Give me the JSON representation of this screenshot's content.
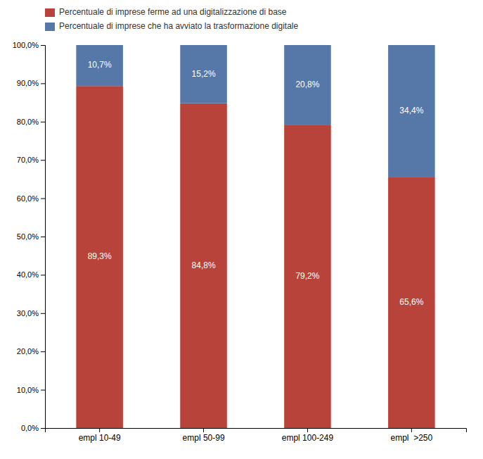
{
  "chart_data": {
    "type": "bar",
    "stacked": true,
    "data_labels": true,
    "grid": false,
    "legend": "top-left",
    "categories": [
      "empl 10-49",
      "empl 50-99",
      "empl 100-249",
      "empl  >250"
    ],
    "series": [
      {
        "name": "Percentuale di imprese ferme ad una digitalizzazione di base",
        "color": "#b8433a",
        "values": [
          89.3,
          84.8,
          79.2,
          65.6
        ],
        "value_labels": [
          "89,3%",
          "84,8%",
          "79,2%",
          "65,6%"
        ]
      },
      {
        "name": "Percentuale di imprese che ha avviato la trasformazione digitale",
        "color": "#5578a8",
        "values": [
          10.7,
          15.2,
          20.8,
          34.4
        ],
        "value_labels": [
          "10,7%",
          "15,2%",
          "20,8%",
          "34,4%"
        ]
      }
    ],
    "ylim": [
      0,
      100
    ],
    "yticks": [
      {
        "value": 0,
        "label": "0,0%"
      },
      {
        "value": 10,
        "label": "10,0%"
      },
      {
        "value": 20,
        "label": "20,0%"
      },
      {
        "value": 30,
        "label": "30,0%"
      },
      {
        "value": 40,
        "label": "40,0%"
      },
      {
        "value": 50,
        "label": "50,0%"
      },
      {
        "value": 60,
        "label": "60,0%"
      },
      {
        "value": 70,
        "label": "70,0%"
      },
      {
        "value": 80,
        "label": "80,0%"
      },
      {
        "value": 90,
        "label": "90,0%"
      },
      {
        "value": 100,
        "label": "100,0%"
      }
    ]
  }
}
